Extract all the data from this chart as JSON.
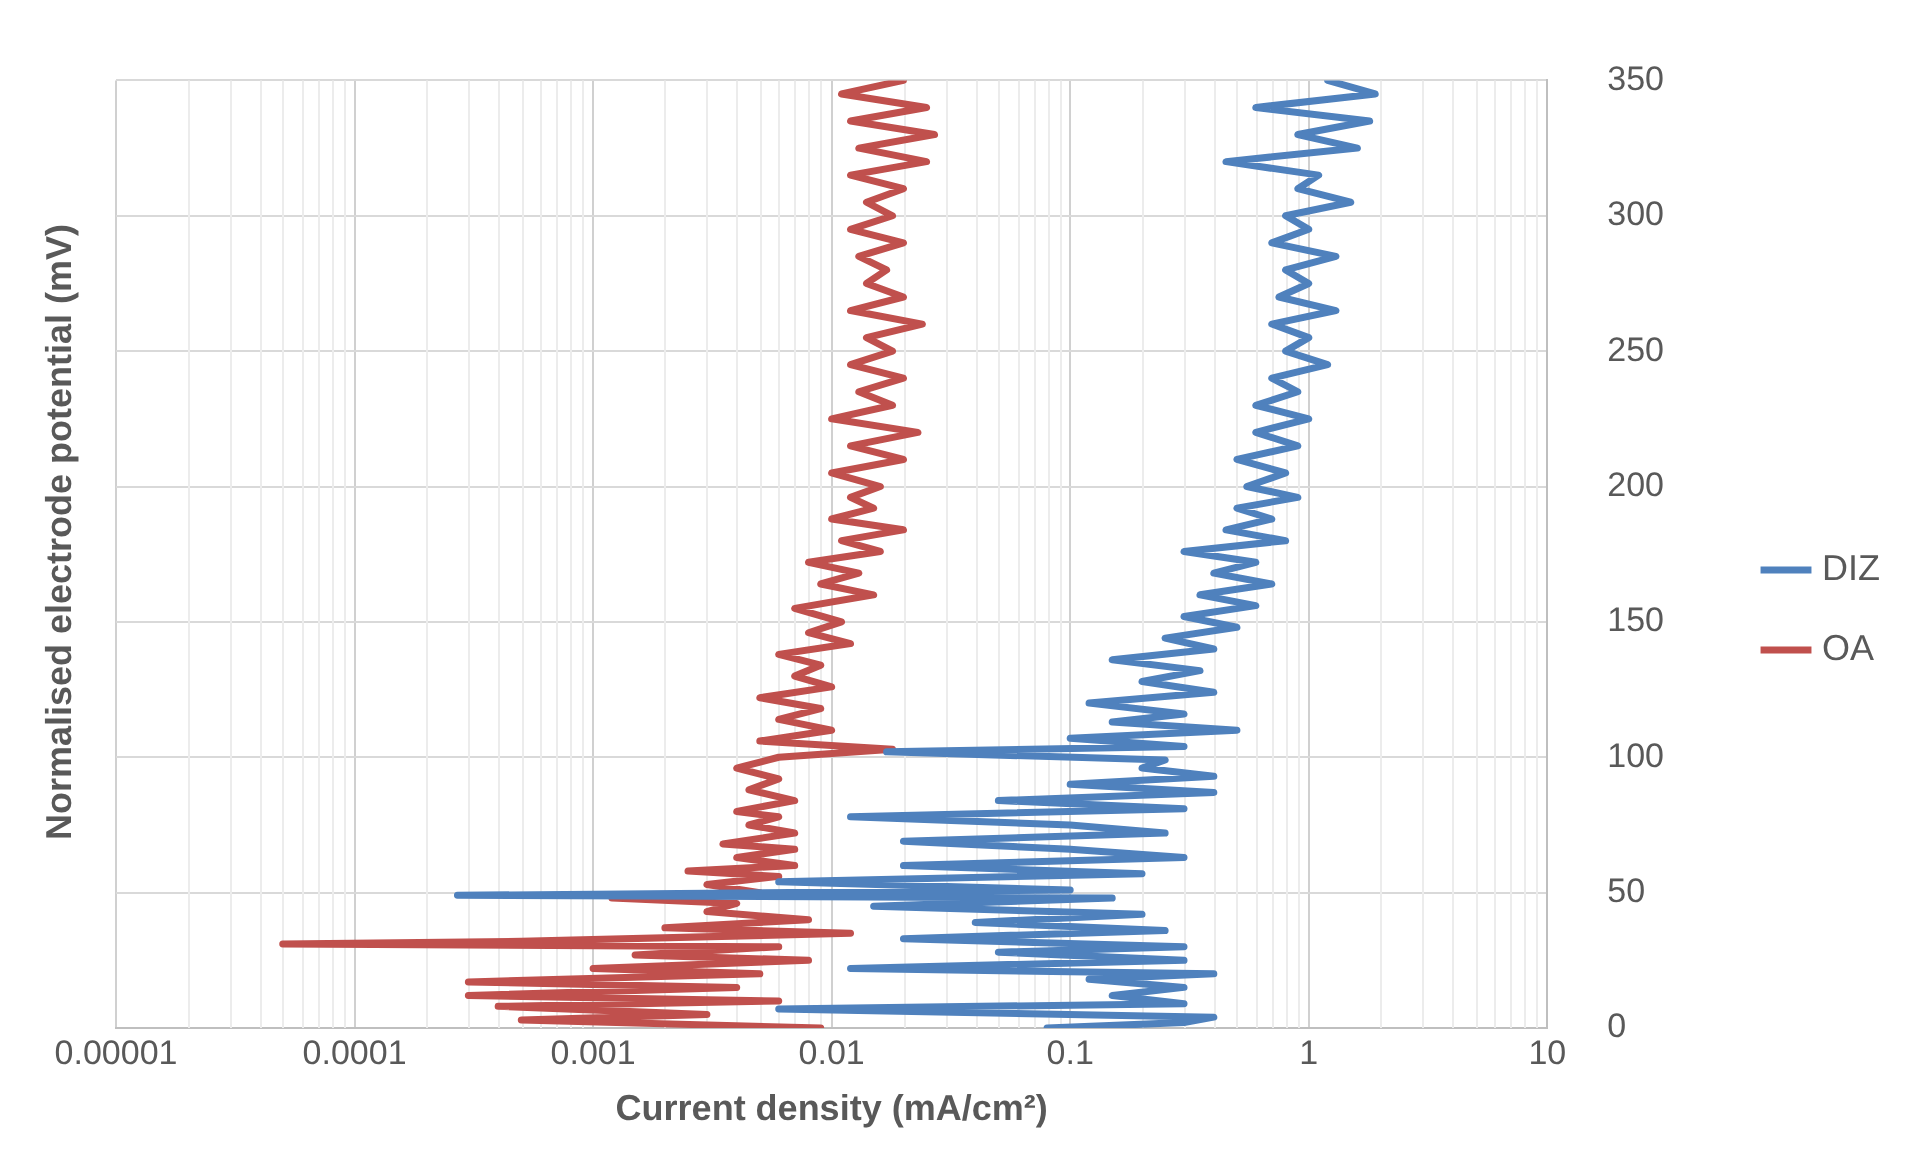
{
  "chart_data": {
    "type": "line",
    "xlabel": "Current density (mA/cm²)",
    "ylabel": "Normalised electrode potential (mV)",
    "log": "x",
    "xlim": [
      1e-05,
      10
    ],
    "xticks": [
      {
        "value": 1e-05,
        "label": "0.00001"
      },
      {
        "value": 0.0001,
        "label": "0.0001"
      },
      {
        "value": 0.001,
        "label": "0.001"
      },
      0.01,
      0.1,
      1,
      10
    ],
    "ylim": [
      0,
      350
    ],
    "yticks": [
      0,
      50,
      100,
      150,
      200,
      250,
      300,
      350
    ],
    "grid": true,
    "legend": "right",
    "marker": "none",
    "line_style": "solid",
    "series": [
      {
        "name": "DIZ",
        "color": "#4f81bd",
        "x": [
          0.08,
          0.3,
          0.4,
          0.006,
          0.3,
          0.15,
          0.3,
          0.12,
          0.4,
          0.012,
          0.3,
          0.05,
          0.3,
          0.02,
          0.25,
          0.04,
          0.2,
          0.015,
          0.15,
          0.00027,
          0.1,
          0.006,
          0.2,
          0.02,
          0.3,
          0.1,
          0.02,
          0.25,
          0.1,
          0.012,
          0.3,
          0.05,
          0.4,
          0.1,
          0.4,
          0.2,
          0.25,
          0.017,
          0.3,
          0.1,
          0.5,
          0.15,
          0.3,
          0.12,
          0.4,
          0.2,
          0.35,
          0.15,
          0.4,
          0.25,
          0.5,
          0.3,
          0.6,
          0.35,
          0.7,
          0.4,
          0.6,
          0.3,
          0.8,
          0.45,
          0.7,
          0.5,
          0.9,
          0.55,
          0.8,
          0.5,
          0.9,
          0.6,
          1,
          0.6,
          0.9,
          0.7,
          1.2,
          0.8,
          1,
          0.7,
          1.3,
          0.75,
          1,
          0.8,
          1.3,
          0.7,
          1,
          0.8,
          1.5,
          0.9,
          1.1,
          0.45,
          1.6,
          0.9,
          1.8,
          0.6,
          1.9,
          1.2
        ],
        "values": [
          0,
          2,
          4,
          7,
          9,
          12,
          15,
          18,
          20,
          22,
          25,
          28,
          30,
          33,
          36,
          39,
          42,
          45,
          48,
          49,
          51,
          54,
          57,
          60,
          63,
          66,
          69,
          72,
          75,
          78,
          81,
          84,
          87,
          90,
          93,
          96,
          99,
          102,
          104,
          107,
          110,
          113,
          116,
          120,
          124,
          128,
          132,
          136,
          140,
          144,
          148,
          152,
          156,
          160,
          164,
          168,
          172,
          176,
          180,
          184,
          188,
          192,
          196,
          200,
          205,
          210,
          215,
          220,
          225,
          230,
          235,
          240,
          245,
          250,
          255,
          260,
          265,
          270,
          275,
          280,
          285,
          290,
          295,
          300,
          305,
          310,
          315,
          320,
          325,
          330,
          335,
          340,
          345,
          350
        ]
      },
      {
        "name": "OA",
        "color": "#c0504d",
        "x": [
          0.009,
          0.0005,
          0.003,
          0.0004,
          0.006,
          0.0003,
          0.004,
          0.0003,
          0.005,
          0.001,
          0.008,
          0.0015,
          0.006,
          5e-05,
          0.0005,
          0.012,
          0.002,
          0.008,
          0.003,
          0.004,
          0.0012,
          0.005,
          0.003,
          0.006,
          0.0025,
          0.007,
          0.004,
          0.007,
          0.0035,
          0.007,
          0.0045,
          0.006,
          0.004,
          0.007,
          0.0045,
          0.006,
          0.004,
          0.006,
          0.018,
          0.005,
          0.01,
          0.006,
          0.009,
          0.005,
          0.01,
          0.007,
          0.009,
          0.006,
          0.012,
          0.008,
          0.011,
          0.007,
          0.015,
          0.009,
          0.013,
          0.008,
          0.016,
          0.011,
          0.02,
          0.01,
          0.015,
          0.012,
          0.016,
          0.01,
          0.02,
          0.012,
          0.023,
          0.01,
          0.018,
          0.013,
          0.02,
          0.012,
          0.018,
          0.014,
          0.024,
          0.012,
          0.02,
          0.014,
          0.017,
          0.013,
          0.02,
          0.012,
          0.018,
          0.014,
          0.02,
          0.012,
          0.025,
          0.013,
          0.027,
          0.012,
          0.025,
          0.011,
          0.02
        ],
        "values": [
          0,
          3,
          5,
          8,
          10,
          12,
          15,
          17,
          20,
          22,
          25,
          27,
          30,
          31,
          32,
          35,
          37,
          40,
          43,
          46,
          48,
          50,
          53,
          56,
          58,
          60,
          63,
          66,
          68,
          72,
          75,
          78,
          80,
          84,
          88,
          92,
          96,
          100,
          103,
          106,
          110,
          114,
          118,
          122,
          126,
          130,
          134,
          138,
          142,
          146,
          150,
          155,
          160,
          164,
          168,
          172,
          176,
          180,
          184,
          188,
          192,
          196,
          200,
          205,
          210,
          215,
          220,
          225,
          230,
          235,
          240,
          245,
          250,
          255,
          260,
          265,
          270,
          275,
          280,
          285,
          290,
          295,
          300,
          305,
          310,
          315,
          320,
          325,
          330,
          335,
          340,
          345,
          350
        ]
      }
    ]
  }
}
